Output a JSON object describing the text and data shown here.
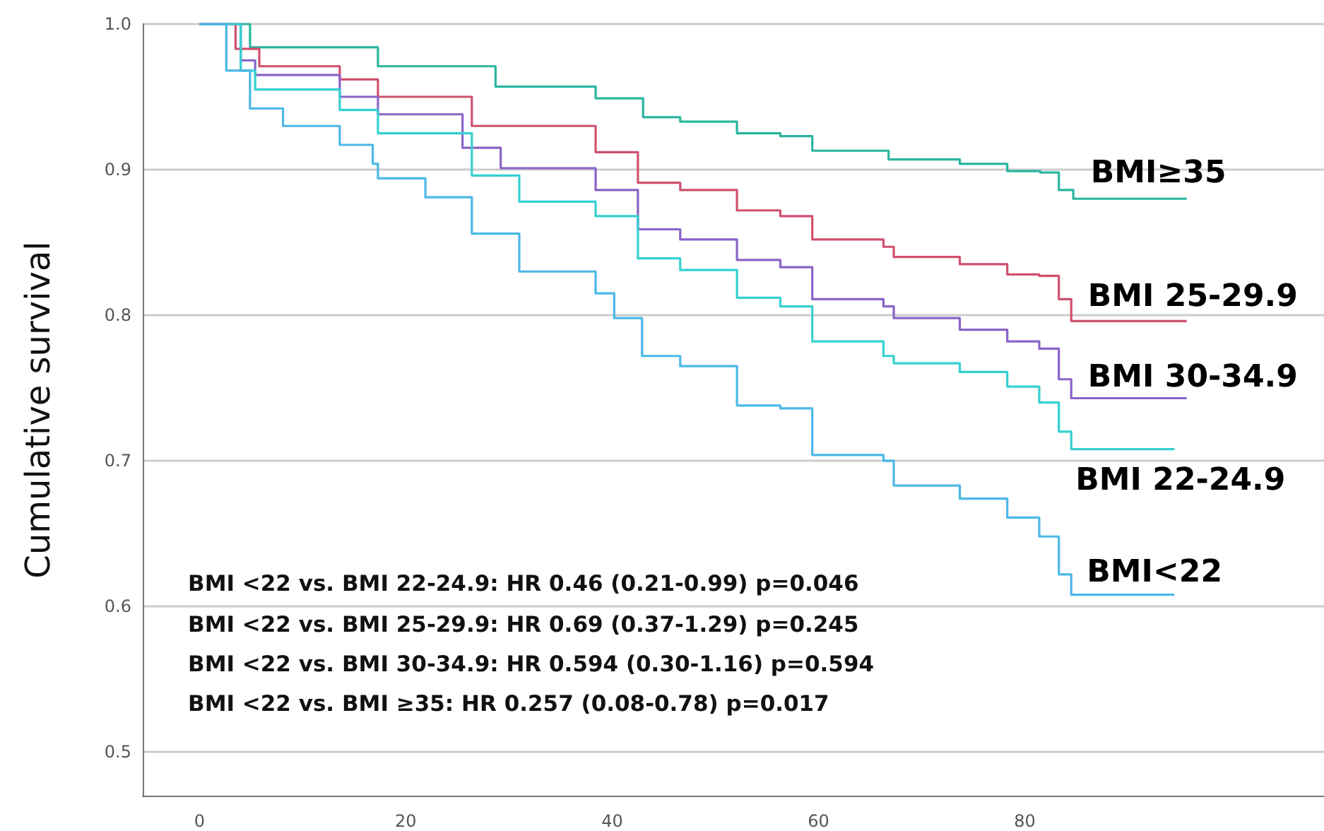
{
  "chart_data": {
    "type": "step",
    "ylabel": "Cumulative survival",
    "xlim": [
      -5.5,
      109
    ],
    "xticks": [
      0,
      20,
      40,
      60,
      80
    ],
    "ylim": [
      0.47,
      1.0
    ],
    "yticks": [
      0.5,
      0.6,
      0.7,
      0.8,
      0.9,
      {
        "value": 1.0,
        "label": "1.0"
      }
    ],
    "grid": "y",
    "legend": false,
    "marker": "none",
    "line_style": "solid",
    "annotations": [
      "BMI <22 vs. BMI 22-24.9: HR 0.46 (0.21-0.99) p=0.046",
      "BMI <22 vs. BMI 25-29.9: HR 0.69 (0.37-1.29) p=0.245",
      "BMI <22 vs. BMI 30-34.9: HR 0.594 (0.30-1.16) p=0.594",
      "BMI <22 vs. BMI ≥35: HR 0.257 (0.08-0.78) p=0.017"
    ],
    "series": [
      {
        "name": "BMI≥35",
        "color": "#2ab5a0",
        "x": [
          0,
          4.9,
          17.3,
          28.7,
          38.4,
          43,
          46.6,
          52.1,
          56.3,
          59.4,
          66.8,
          73.7,
          78.3,
          81.5,
          83.3,
          84.7,
          95.7
        ],
        "values": [
          1.0,
          0.984,
          0.971,
          0.957,
          0.949,
          0.936,
          0.933,
          0.925,
          0.923,
          0.913,
          0.907,
          0.904,
          0.899,
          0.898,
          0.886,
          0.88,
          0.88
        ]
      },
      {
        "name": "BMI 25-29.9",
        "color": "#d0506e",
        "x": [
          0,
          3.5,
          5.8,
          13.6,
          17.3,
          26.4,
          38.4,
          42.5,
          46.6,
          52.1,
          56.3,
          59.4,
          66.3,
          67.3,
          73.7,
          78.3,
          81.4,
          83.3,
          84.5,
          95.7
        ],
        "values": [
          1.0,
          0.983,
          0.971,
          0.962,
          0.95,
          0.93,
          0.912,
          0.891,
          0.886,
          0.872,
          0.868,
          0.852,
          0.847,
          0.84,
          0.835,
          0.828,
          0.827,
          0.811,
          0.796,
          0.796
        ]
      },
      {
        "name": "BMI 30-34.9",
        "color": "#8a63c8",
        "x": [
          0,
          4,
          5.4,
          13.6,
          17.3,
          25.5,
          29.2,
          38.4,
          42.5,
          46.6,
          52.1,
          56.3,
          59.4,
          66.3,
          67.3,
          73.7,
          78.3,
          81.4,
          83.3,
          84.5,
          95.7
        ],
        "values": [
          1.0,
          0.975,
          0.965,
          0.95,
          0.938,
          0.915,
          0.901,
          0.886,
          0.859,
          0.852,
          0.838,
          0.833,
          0.811,
          0.806,
          0.798,
          0.79,
          0.782,
          0.777,
          0.756,
          0.743,
          0.743
        ]
      },
      {
        "name": "BMI 22-24.9",
        "color": "#35d0d0",
        "x": [
          0,
          4,
          5.4,
          13.6,
          17.3,
          26.4,
          31,
          38.4,
          42.5,
          46.6,
          52.1,
          56.3,
          59.4,
          66.3,
          67.3,
          73.7,
          78.3,
          81.4,
          83.3,
          84.5,
          94.5
        ],
        "values": [
          1.0,
          0.968,
          0.955,
          0.941,
          0.925,
          0.896,
          0.878,
          0.868,
          0.839,
          0.831,
          0.812,
          0.806,
          0.782,
          0.772,
          0.767,
          0.761,
          0.751,
          0.74,
          0.72,
          0.708,
          0.708
        ]
      },
      {
        "name": "BMI<22",
        "color": "#4bb8e8",
        "x": [
          0,
          2.6,
          4.9,
          8.1,
          13.6,
          16.8,
          17.3,
          21.9,
          26.4,
          31,
          38.4,
          40.2,
          42.9,
          46.6,
          52.1,
          56.3,
          59.4,
          66.3,
          67.3,
          73.7,
          78.3,
          81.4,
          83.3,
          84.5,
          94.5
        ],
        "values": [
          1.0,
          0.968,
          0.942,
          0.93,
          0.917,
          0.904,
          0.894,
          0.881,
          0.856,
          0.83,
          0.815,
          0.798,
          0.772,
          0.765,
          0.738,
          0.736,
          0.704,
          0.7,
          0.683,
          0.674,
          0.661,
          0.648,
          0.622,
          0.608,
          0.608
        ]
      }
    ]
  }
}
